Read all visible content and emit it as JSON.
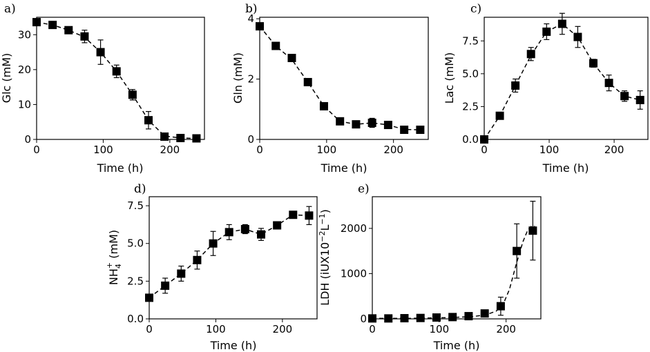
{
  "chart_data": [
    {
      "type": "scatter",
      "panel_label": "a)",
      "xlabel": "Time (h)",
      "ylabel": "Glc (mM)",
      "xlim": [
        0,
        252
      ],
      "ylim": [
        0,
        35
      ],
      "xticks": [
        0,
        100,
        200
      ],
      "yticks": [
        0,
        10,
        20,
        30
      ],
      "x": [
        0,
        24,
        48,
        72,
        96,
        120,
        144,
        168,
        192,
        216,
        240
      ],
      "y": [
        33.6,
        32.8,
        31.3,
        29.5,
        25.0,
        19.5,
        12.8,
        5.5,
        0.8,
        0.4,
        0.3
      ],
      "err": [
        0.5,
        0.5,
        0.8,
        1.8,
        3.5,
        1.8,
        1.5,
        2.5,
        0.4,
        0.2,
        0.2
      ],
      "fit": [
        [
          0,
          33.6
        ],
        [
          24,
          32.8
        ],
        [
          48,
          31.3
        ],
        [
          72,
          29.3
        ],
        [
          96,
          25.0
        ],
        [
          120,
          19.5
        ],
        [
          144,
          12.8
        ],
        [
          168,
          5.5
        ],
        [
          192,
          1.0
        ],
        [
          216,
          0.4
        ],
        [
          240,
          0.3
        ]
      ]
    },
    {
      "type": "scatter",
      "panel_label": "b)",
      "xlabel": "Time (h)",
      "ylabel": "Gln (mM)",
      "xlim": [
        0,
        252
      ],
      "ylim": [
        0,
        4.05
      ],
      "xticks": [
        0,
        100,
        200
      ],
      "yticks": [
        0,
        2,
        4
      ],
      "x": [
        0,
        24,
        48,
        72,
        96,
        120,
        144,
        168,
        192,
        216,
        240
      ],
      "y": [
        3.75,
        3.1,
        2.7,
        1.9,
        1.1,
        0.6,
        0.5,
        0.55,
        0.48,
        0.32,
        0.32
      ],
      "err": [
        0.05,
        0.05,
        0.05,
        0.05,
        0.1,
        0.05,
        0.1,
        0.15,
        0.12,
        0.05,
        0.05
      ],
      "fit": [
        [
          0,
          3.75
        ],
        [
          24,
          3.1
        ],
        [
          48,
          2.65
        ],
        [
          72,
          1.9
        ],
        [
          96,
          1.1
        ],
        [
          120,
          0.6
        ],
        [
          144,
          0.5
        ],
        [
          168,
          0.55
        ],
        [
          192,
          0.48
        ],
        [
          216,
          0.33
        ],
        [
          240,
          0.32
        ]
      ]
    },
    {
      "type": "scatter",
      "panel_label": "c)",
      "xlabel": "Time (h)",
      "ylabel": "Lac (mM)",
      "xlim": [
        0,
        252
      ],
      "ylim": [
        0,
        9.3
      ],
      "xticks": [
        0,
        100,
        200
      ],
      "yticks": [
        0.0,
        2.5,
        5.0,
        7.5
      ],
      "ytick_labels": [
        "0.0",
        "2.5",
        "5.0",
        "7.5"
      ],
      "x": [
        0,
        24,
        48,
        72,
        96,
        120,
        144,
        168,
        192,
        216,
        240
      ],
      "y": [
        0.0,
        1.8,
        4.1,
        6.5,
        8.2,
        8.8,
        7.8,
        5.8,
        4.3,
        3.3,
        3.0
      ],
      "err": [
        0.05,
        0.2,
        0.5,
        0.5,
        0.6,
        0.8,
        0.8,
        0.3,
        0.6,
        0.4,
        0.7
      ],
      "fit": [
        [
          0,
          0.0
        ],
        [
          24,
          1.8
        ],
        [
          48,
          4.1
        ],
        [
          72,
          6.4
        ],
        [
          96,
          8.2
        ],
        [
          120,
          8.8
        ],
        [
          144,
          7.8
        ],
        [
          168,
          5.8
        ],
        [
          192,
          4.3
        ],
        [
          216,
          3.3
        ],
        [
          240,
          3.0
        ]
      ]
    },
    {
      "type": "scatter",
      "panel_label": "d)",
      "xlabel": "Time (h)",
      "ylabel": "NH₄⁺ (mM)",
      "ylabel_main": "NH",
      "ylabel_sub": "4",
      "ylabel_sup": "+",
      "ylabel_unit": " (mM)",
      "xlim": [
        0,
        252
      ],
      "ylim": [
        0,
        8.1
      ],
      "xticks": [
        0,
        100,
        200
      ],
      "yticks": [
        0.0,
        2.5,
        5.0,
        7.5
      ],
      "ytick_labels": [
        "0.0",
        "2.5",
        "5.0",
        "7.5"
      ],
      "x": [
        0,
        24,
        48,
        72,
        96,
        120,
        144,
        168,
        192,
        216,
        240
      ],
      "y": [
        1.4,
        2.2,
        3.0,
        3.9,
        5.0,
        5.75,
        5.95,
        5.6,
        6.2,
        6.9,
        6.85
      ],
      "err": [
        0.2,
        0.5,
        0.5,
        0.6,
        0.8,
        0.5,
        0.3,
        0.4,
        0.1,
        0.1,
        0.6
      ],
      "fit": [
        [
          0,
          1.4
        ],
        [
          24,
          2.2
        ],
        [
          48,
          3.0
        ],
        [
          72,
          3.9
        ],
        [
          96,
          5.0
        ],
        [
          120,
          5.75
        ],
        [
          144,
          5.95
        ],
        [
          168,
          5.6
        ],
        [
          192,
          6.2
        ],
        [
          216,
          6.9
        ],
        [
          240,
          6.85
        ]
      ]
    },
    {
      "type": "scatter",
      "panel_label": "e)",
      "xlabel": "Time (h)",
      "ylabel": "LDH (iUX10⁻²L⁻¹)",
      "ylabel_main": "LDH (iUX10",
      "ylabel_sup1": "−2",
      "ylabel_mid": "L",
      "ylabel_sup2": "−1",
      "ylabel_end": ")",
      "xlim": [
        0,
        252
      ],
      "ylim": [
        0,
        2700
      ],
      "xticks": [
        0,
        100,
        200
      ],
      "yticks": [
        0,
        1000,
        2000
      ],
      "x": [
        0,
        24,
        48,
        72,
        96,
        120,
        144,
        168,
        192,
        216,
        240
      ],
      "y": [
        10,
        10,
        15,
        20,
        30,
        40,
        60,
        120,
        280,
        1500,
        1950
      ],
      "err": [
        5,
        5,
        5,
        5,
        5,
        10,
        20,
        50,
        200,
        600,
        650
      ],
      "fit": [
        [
          0,
          10
        ],
        [
          60,
          12
        ],
        [
          120,
          30
        ],
        [
          150,
          50
        ],
        [
          170,
          90
        ],
        [
          185,
          170
        ],
        [
          195,
          300
        ],
        [
          205,
          650
        ],
        [
          215,
          1200
        ],
        [
          225,
          1700
        ],
        [
          232,
          1950
        ],
        [
          238,
          2050
        ],
        [
          243,
          2050
        ]
      ]
    }
  ]
}
